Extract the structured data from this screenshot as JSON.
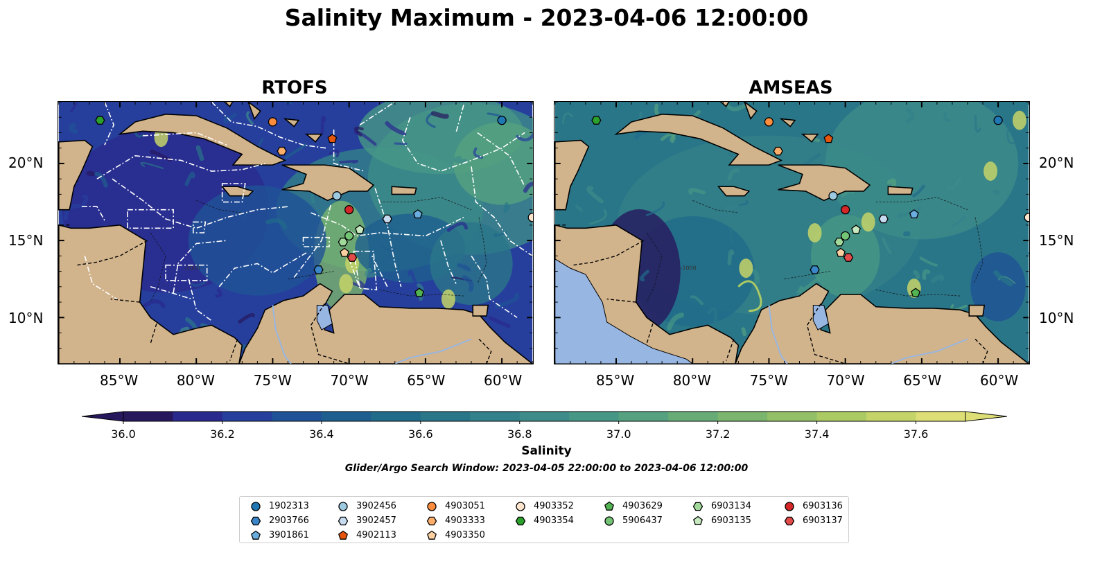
{
  "title": "Salinity Maximum - 2023-04-06 12:00:00",
  "panels": [
    {
      "title": "RTOFS",
      "model": "rtofs"
    },
    {
      "title": "AMSEAS",
      "model": "amseas"
    }
  ],
  "map": {
    "lon_range": [
      -89,
      -58
    ],
    "lat_range": [
      7,
      24
    ],
    "lon_ticks": [
      "85°W",
      "80°W",
      "75°W",
      "70°W",
      "65°W",
      "60°W"
    ],
    "lon_tick_values": [
      -85,
      -80,
      -75,
      -70,
      -65,
      -60
    ],
    "lat_ticks": [
      "20°N",
      "15°N",
      "10°N"
    ],
    "lat_tick_values": [
      20,
      15,
      10
    ],
    "land_color": "#d2b48c",
    "lake_color": "#97b6e1",
    "contour_label": "-1000"
  },
  "colorbar": {
    "label": "Salinity",
    "min": 36.0,
    "max": 37.7,
    "step": 0.1,
    "ticks": [
      "36.0",
      "36.2",
      "36.4",
      "36.6",
      "36.8",
      "37.0",
      "37.2",
      "37.4",
      "37.6"
    ],
    "tick_values": [
      36.0,
      36.2,
      36.4,
      36.6,
      36.8,
      37.0,
      37.2,
      37.4,
      37.6
    ],
    "extend": "both",
    "colors": [
      "#27185e",
      "#2a2a8e",
      "#263f9d",
      "#1f5296",
      "#1f5f8f",
      "#216b8a",
      "#2a7689",
      "#33818a",
      "#3d8c89",
      "#479786",
      "#55a180",
      "#67ac77",
      "#7cb56d",
      "#93c066",
      "#acca64",
      "#c5d469",
      "#dddf76"
    ]
  },
  "window_text": "Glider/Argo Search Window: 2023-04-05 22:00:00 to 2023-04-06 12:00:00",
  "legend": [
    {
      "id": "1902313",
      "marker": "circle",
      "color": "#1f77b4"
    },
    {
      "id": "2903766",
      "marker": "hexagon",
      "color": "#3a86c8"
    },
    {
      "id": "3901861",
      "marker": "pentagon",
      "color": "#6aaee0"
    },
    {
      "id": "3902456",
      "marker": "circle",
      "color": "#9ecae1"
    },
    {
      "id": "3902457",
      "marker": "hexagon",
      "color": "#c6dbef"
    },
    {
      "id": "4902113",
      "marker": "pentagon",
      "color": "#e6550d"
    },
    {
      "id": "4903051",
      "marker": "circle",
      "color": "#fd8d3c"
    },
    {
      "id": "4903333",
      "marker": "hexagon",
      "color": "#fdae6b"
    },
    {
      "id": "4903350",
      "marker": "pentagon",
      "color": "#fdd0a2"
    },
    {
      "id": "4903352",
      "marker": "circle",
      "color": "#fde4cc"
    },
    {
      "id": "4903354",
      "marker": "hexagon",
      "color": "#2ca02c"
    },
    {
      "id": "4903629",
      "marker": "pentagon",
      "color": "#52b352"
    },
    {
      "id": "5906437",
      "marker": "circle",
      "color": "#74c476"
    },
    {
      "id": "6903134",
      "marker": "hexagon",
      "color": "#a1d99b"
    },
    {
      "id": "6903135",
      "marker": "pentagon",
      "color": "#c7e9c0"
    },
    {
      "id": "6903136",
      "marker": "circle",
      "color": "#d62728"
    },
    {
      "id": "6903137",
      "marker": "hexagon",
      "color": "#e34a4a"
    }
  ],
  "observations": [
    {
      "id": "1902313",
      "lon": -60.0,
      "lat": 22.8
    },
    {
      "id": "2903766",
      "lon": -72.0,
      "lat": 13.1
    },
    {
      "id": "3901861",
      "lon": -65.5,
      "lat": 16.7
    },
    {
      "id": "3902456",
      "lon": -70.8,
      "lat": 17.9
    },
    {
      "id": "3902457",
      "lon": -67.5,
      "lat": 16.4
    },
    {
      "id": "4902113",
      "lon": -71.1,
      "lat": 21.6
    },
    {
      "id": "4903051",
      "lon": -75.0,
      "lat": 22.7
    },
    {
      "id": "4903333",
      "lon": -74.4,
      "lat": 20.8
    },
    {
      "id": "4903350",
      "lon": -70.3,
      "lat": 14.2
    },
    {
      "id": "4903352",
      "lon": -58.0,
      "lat": 16.5
    },
    {
      "id": "4903354",
      "lon": -86.3,
      "lat": 22.8
    },
    {
      "id": "4903629",
      "lon": -65.4,
      "lat": 11.6
    },
    {
      "id": "5906437",
      "lon": -70.0,
      "lat": 15.3
    },
    {
      "id": "6903134",
      "lon": -70.4,
      "lat": 14.9
    },
    {
      "id": "6903135",
      "lon": -69.3,
      "lat": 15.7
    },
    {
      "id": "6903136",
      "lon": -70.0,
      "lat": 17.0
    },
    {
      "id": "6903137",
      "lon": -69.8,
      "lat": 13.9
    }
  ]
}
